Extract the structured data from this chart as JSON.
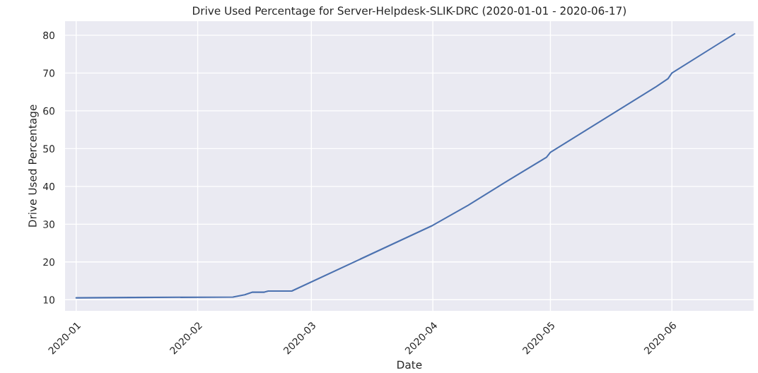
{
  "chart_data": {
    "type": "line",
    "title": "Drive Used Percentage for Server-Helpdesk-SLIK-DRC (2020-01-01 - 2020-06-17)",
    "xlabel": "Date",
    "ylabel": "Drive Used Percentage",
    "x": [
      "2020-01-01",
      "2020-01-15",
      "2020-02-10",
      "2020-02-13",
      "2020-02-15",
      "2020-02-18",
      "2020-02-19",
      "2020-02-25",
      "2020-04-01",
      "2020-04-10",
      "2020-04-19",
      "2020-04-30",
      "2020-05-01",
      "2020-05-28",
      "2020-05-31",
      "2020-06-01",
      "2020-06-17"
    ],
    "series": [
      {
        "color": "#4c72b0",
        "values": [
          10.5,
          10.6,
          10.7,
          11.3,
          12.0,
          12.0,
          12.3,
          12.3,
          29.7,
          35.0,
          40.8,
          47.7,
          49.0,
          66.4,
          68.5,
          70.0,
          80.4
        ]
      }
    ],
    "xlim": [
      "2019-12-29",
      "2020-06-22"
    ],
    "ylim": [
      6.9,
      83.9
    ],
    "xticks": [
      {
        "value": "2020-01-01",
        "label": "2020-01"
      },
      {
        "value": "2020-02-01",
        "label": "2020-02"
      },
      {
        "value": "2020-03-01",
        "label": "2020-03"
      },
      {
        "value": "2020-04-01",
        "label": "2020-04"
      },
      {
        "value": "2020-05-01",
        "label": "2020-05"
      },
      {
        "value": "2020-06-01",
        "label": "2020-06"
      }
    ],
    "yticks": [
      10,
      20,
      30,
      40,
      50,
      60,
      70,
      80
    ],
    "grid": true,
    "marker": "none",
    "line_style": "solid"
  }
}
